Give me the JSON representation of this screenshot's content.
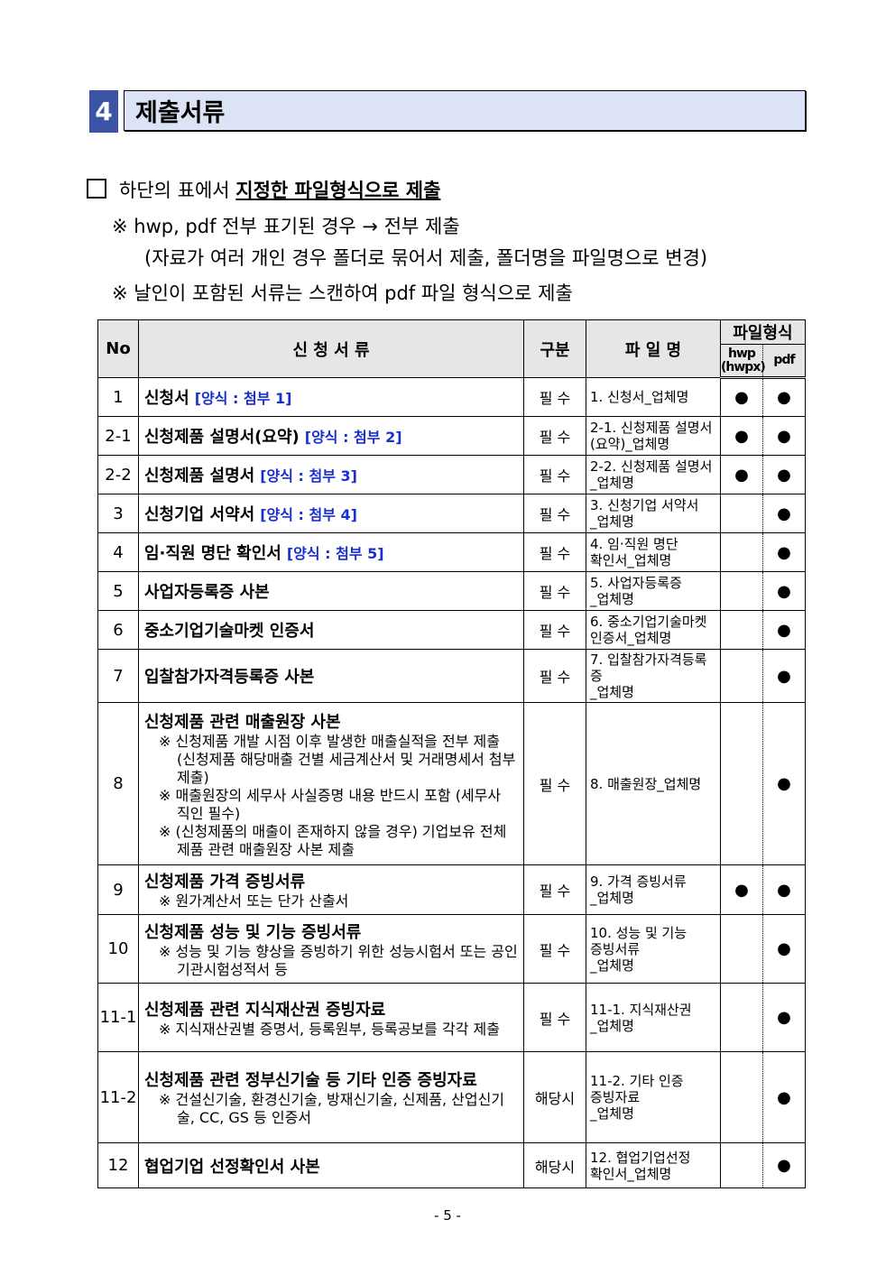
{
  "section": {
    "number": "4",
    "title": "제출서류"
  },
  "intro": {
    "main_prefix": "하단의 표에서 ",
    "main_emph": "지정한 파일형식으로 제출",
    "note1": "※ hwp, pdf 전부 표기된 경우 → 전부 제출",
    "note1b": "(자료가 여러 개인 경우 폴더로 묶어서 제출, 폴더명을 파일명으로 변경)",
    "note2": "※ 날인이 포함된 서류는 스캔하여 pdf 파일 형식으로 제출"
  },
  "table": {
    "headers": {
      "no": "No",
      "doc": "신 청 서 류",
      "type": "구분",
      "file": "파 일 명",
      "format": "파일형식",
      "hwp": "hwp\n(hwpx)",
      "pdf": "pdf"
    },
    "dot": "●",
    "rows": [
      {
        "no": "1",
        "title": "신청서",
        "ref": "[양식 : 첨부 1]",
        "notes": [],
        "type": "필 수",
        "file": "1. 신청서_업체명",
        "hwp": true,
        "pdf": true
      },
      {
        "no": "2-1",
        "title": "신청제품 설명서(요약)",
        "ref": "[양식 : 첨부 2]",
        "notes": [],
        "type": "필 수",
        "file": "2-1. 신청제품 설명서\n     (요약)_업체명",
        "hwp": true,
        "pdf": true
      },
      {
        "no": "2-2",
        "title": "신청제품 설명서",
        "ref": "[양식 : 첨부 3]",
        "notes": [],
        "type": "필 수",
        "file": "2-2. 신청제품 설명서\n     _업체명",
        "hwp": true,
        "pdf": true
      },
      {
        "no": "3",
        "title": "신청기업 서약서",
        "ref": "[양식 : 첨부 4]",
        "notes": [],
        "type": "필 수",
        "file": "3. 신청기업 서약서\n   _업체명",
        "hwp": false,
        "pdf": true
      },
      {
        "no": "4",
        "title": "임·직원 명단 확인서",
        "ref": "[양식 : 첨부 5]",
        "notes": [],
        "type": "필 수",
        "file": "4. 임·직원 명단\n   확인서_업체명",
        "hwp": false,
        "pdf": true
      },
      {
        "no": "5",
        "title": "사업자등록증 사본",
        "ref": "",
        "notes": [],
        "type": "필 수",
        "file": "5. 사업자등록증\n   _업체명",
        "hwp": false,
        "pdf": true
      },
      {
        "no": "6",
        "title": "중소기업기술마켓 인증서",
        "ref": "",
        "notes": [],
        "type": "필 수",
        "file": "6. 중소기업기술마켓\n   인증서_업체명",
        "hwp": false,
        "pdf": true
      },
      {
        "no": "7",
        "title": "입찰참가자격등록증 사본",
        "ref": "",
        "notes": [],
        "type": "필 수",
        "file": "7. 입찰참가자격등록증\n   _업체명",
        "hwp": false,
        "pdf": true
      },
      {
        "no": "8",
        "title": "신청제품 관련 매출원장 사본",
        "ref": "",
        "notes": [
          "※ 신청제품 개발 시점 이후 발생한 매출실적을 전부 제출 (신청제품 해당매출 건별 세금계산서 및 거래명세서 첨부 제출)",
          "※ 매출원장의 세무사 사실증명 내용 반드시 포함 (세무사 직인 필수)",
          "※ (신청제품의 매출이 존재하지 않을 경우) 기업보유 전체 제품 관련 매출원장 사본 제출"
        ],
        "type": "필 수",
        "file": "8. 매출원장_업체명",
        "hwp": false,
        "pdf": true
      },
      {
        "no": "9",
        "title": "신청제품 가격 증빙서류",
        "ref": "",
        "notes": [
          "※ 원가계산서 또는 단가 산출서"
        ],
        "type": "필 수",
        "file": "9. 가격 증빙서류\n   _업체명",
        "hwp": true,
        "pdf": true
      },
      {
        "no": "10",
        "title": "신청제품 성능 및 기능 증빙서류",
        "ref": "",
        "notes": [
          "※ 성능 및 기능 향상을 증빙하기 위한 성능시험서 또는 공인기관시험성적서 등"
        ],
        "type": "필 수",
        "file": "10. 성능 및 기능\n    증빙서류\n    _업체명",
        "hwp": false,
        "pdf": true
      },
      {
        "no": "11-1",
        "title": "신청제품 관련 지식재산권 증빙자료",
        "ref": "",
        "notes": [
          "※ 지식재산권별 증명서, 등록원부, 등록공보를 각각 제출"
        ],
        "type": "필 수",
        "file": "11-1. 지식재산권\n     _업체명",
        "hwp": false,
        "pdf": true
      },
      {
        "no": "11-2",
        "title": "신청제품 관련 정부신기술 등 기타 인증 증빙자료",
        "ref": "",
        "notes": [
          "※ 건설신기술, 환경신기술, 방재신기술, 신제품, 산업신기술, CC, GS 등 인증서"
        ],
        "type": "해당시",
        "file": "11-2. 기타 인증\n     증빙자료\n     _업체명",
        "hwp": false,
        "pdf": true
      },
      {
        "no": "12",
        "title": "협업기업 선정확인서 사본",
        "ref": "",
        "notes": [],
        "type": "해당시",
        "file": "12. 협업기업선정\n    확인서_업체명",
        "hwp": false,
        "pdf": true
      }
    ]
  },
  "page_number": "- 5 -"
}
